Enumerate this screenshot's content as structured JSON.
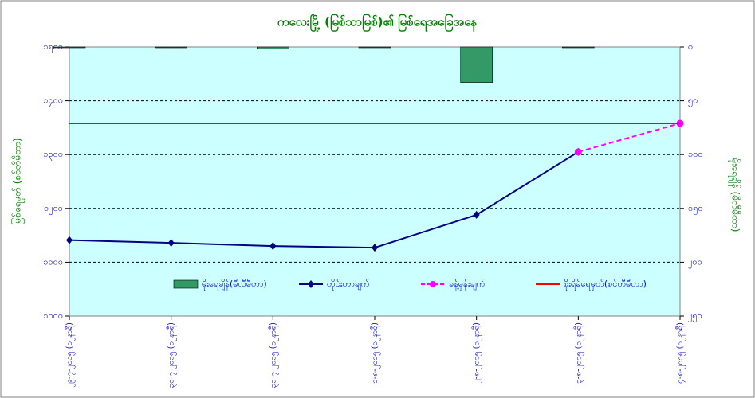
{
  "chart_data": {
    "type": "combo",
    "title": "ကလေးမြို့ (မြစ်သာမြစ်)၏ မြစ်ရေအခြေအနေ",
    "y_label": "မြစ်ရေမှတ် (စင်တီမီတာ)",
    "y2_label": "မိုးရေချိန် (မီလီမီတာ)",
    "categories": [
      "၂၉-၇-၂၀၁၅ (၁၂နာရီ)",
      "၃၀-၇-၂၀၁၅ (၁၂နာရီ)",
      "၃၁-၇-၂၀၁၅ (၁၂နာရီ)",
      "၁-၈-၂၀၁၅ (၁၂နာရီ)",
      "၂-၈-၂၀၁၅ (၁၂နာရီ)",
      "၃-၈-၂၀၁၅ (၁၂နာရီ)",
      "၄-၈-၂၀၁၅ (၁၂နာရီ)"
    ],
    "ylim": [
      1000,
      1500
    ],
    "yticks": [
      {
        "value": 1000,
        "label": "၁၀၀၀"
      },
      {
        "value": 1100,
        "label": "၁၁၀၀"
      },
      {
        "value": 1200,
        "label": "၁၂၀၀"
      },
      {
        "value": 1300,
        "label": "၁၃၀၀"
      },
      {
        "value": 1400,
        "label": "၁၄၀၀"
      },
      {
        "value": 1500,
        "label": "၁၅၀၀"
      }
    ],
    "y2lim": [
      0,
      250
    ],
    "y2_inverted": true,
    "y2ticks": [
      {
        "value": 0,
        "label": "၀"
      },
      {
        "value": 50,
        "label": "၅၀"
      },
      {
        "value": 100,
        "label": "၁၀၀"
      },
      {
        "value": 150,
        "label": "၁၅၀"
      },
      {
        "value": 200,
        "label": "၂၀၀"
      },
      {
        "value": 250,
        "label": "၂၅၀"
      }
    ],
    "grid": true,
    "legend": "bottom",
    "series": [
      {
        "name": "မိုးရေချိန်(မီလီမီတာ)",
        "kind": "bar",
        "axis": "y2",
        "color": "#339966",
        "values": [
          0,
          0,
          2,
          0,
          33,
          0,
          null
        ]
      },
      {
        "name": "တိုင်းတာချက်",
        "kind": "line",
        "marker": "diamond",
        "color": "#000080",
        "values": [
          1141,
          1136,
          1130,
          1127,
          1188,
          1305,
          null
        ]
      },
      {
        "name": "ခန့်မှန်းချက်",
        "kind": "line",
        "marker": "circle",
        "dashed": true,
        "color": "#ff00ff",
        "values": [
          null,
          null,
          null,
          null,
          null,
          1305,
          1358
        ]
      },
      {
        "name": "စိုးရိမ်ရေမှတ်(စင်တီမီတာ)",
        "kind": "line",
        "color": "#ff0000",
        "values": [
          1358,
          1358,
          1358,
          1358,
          1358,
          1358,
          1358
        ]
      }
    ]
  }
}
